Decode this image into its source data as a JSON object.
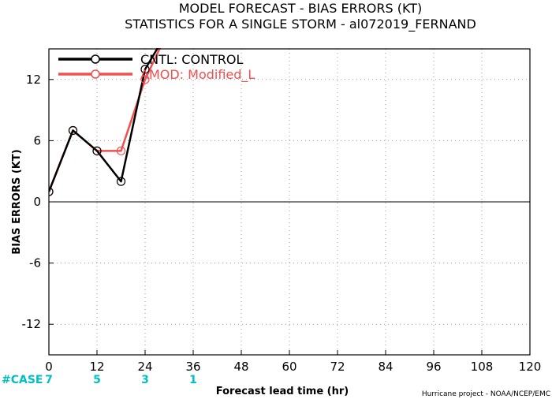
{
  "titles": {
    "line1": "MODEL FORECAST - BIAS ERRORS (KT)",
    "line2": "STATISTICS FOR A SINGLE STORM - al072019_FERNAND"
  },
  "credit": "Hurricane project - NOAA/NCEP/EMC",
  "cases": {
    "label": "#CASE",
    "color": "#00c0c0",
    "items": [
      {
        "x": 0,
        "text": "7"
      },
      {
        "x": 12,
        "text": "5"
      },
      {
        "x": 24,
        "text": "3"
      },
      {
        "x": 36,
        "text": "1"
      }
    ]
  },
  "chart_data": {
    "type": "line",
    "title": "MODEL FORECAST - BIAS ERRORS (KT)",
    "subtitle": "STATISTICS FOR A SINGLE STORM - al072019_FERNAND",
    "xlabel": "Forecast lead time (hr)",
    "ylabel": "BIAS ERRORS (KT)",
    "xlim": [
      0,
      120
    ],
    "ylim": [
      -15,
      15
    ],
    "xticks": [
      0,
      12,
      24,
      36,
      48,
      60,
      72,
      84,
      96,
      108,
      120
    ],
    "yticks": [
      -12,
      -6,
      0,
      6,
      12
    ],
    "grid": true,
    "legend_position": "top-left",
    "series": [
      {
        "name": "CNTL: CONTROL",
        "color": "#000000",
        "x": [
          0,
          6,
          12,
          18,
          24,
          30
        ],
        "y": [
          1,
          7,
          5,
          2,
          13,
          17
        ]
      },
      {
        "name": "AMOD: Modified_L",
        "color": "#f05050",
        "x": [
          0,
          6,
          12,
          18,
          24,
          30
        ],
        "y": [
          1,
          7,
          5,
          5,
          12,
          17
        ]
      }
    ]
  }
}
